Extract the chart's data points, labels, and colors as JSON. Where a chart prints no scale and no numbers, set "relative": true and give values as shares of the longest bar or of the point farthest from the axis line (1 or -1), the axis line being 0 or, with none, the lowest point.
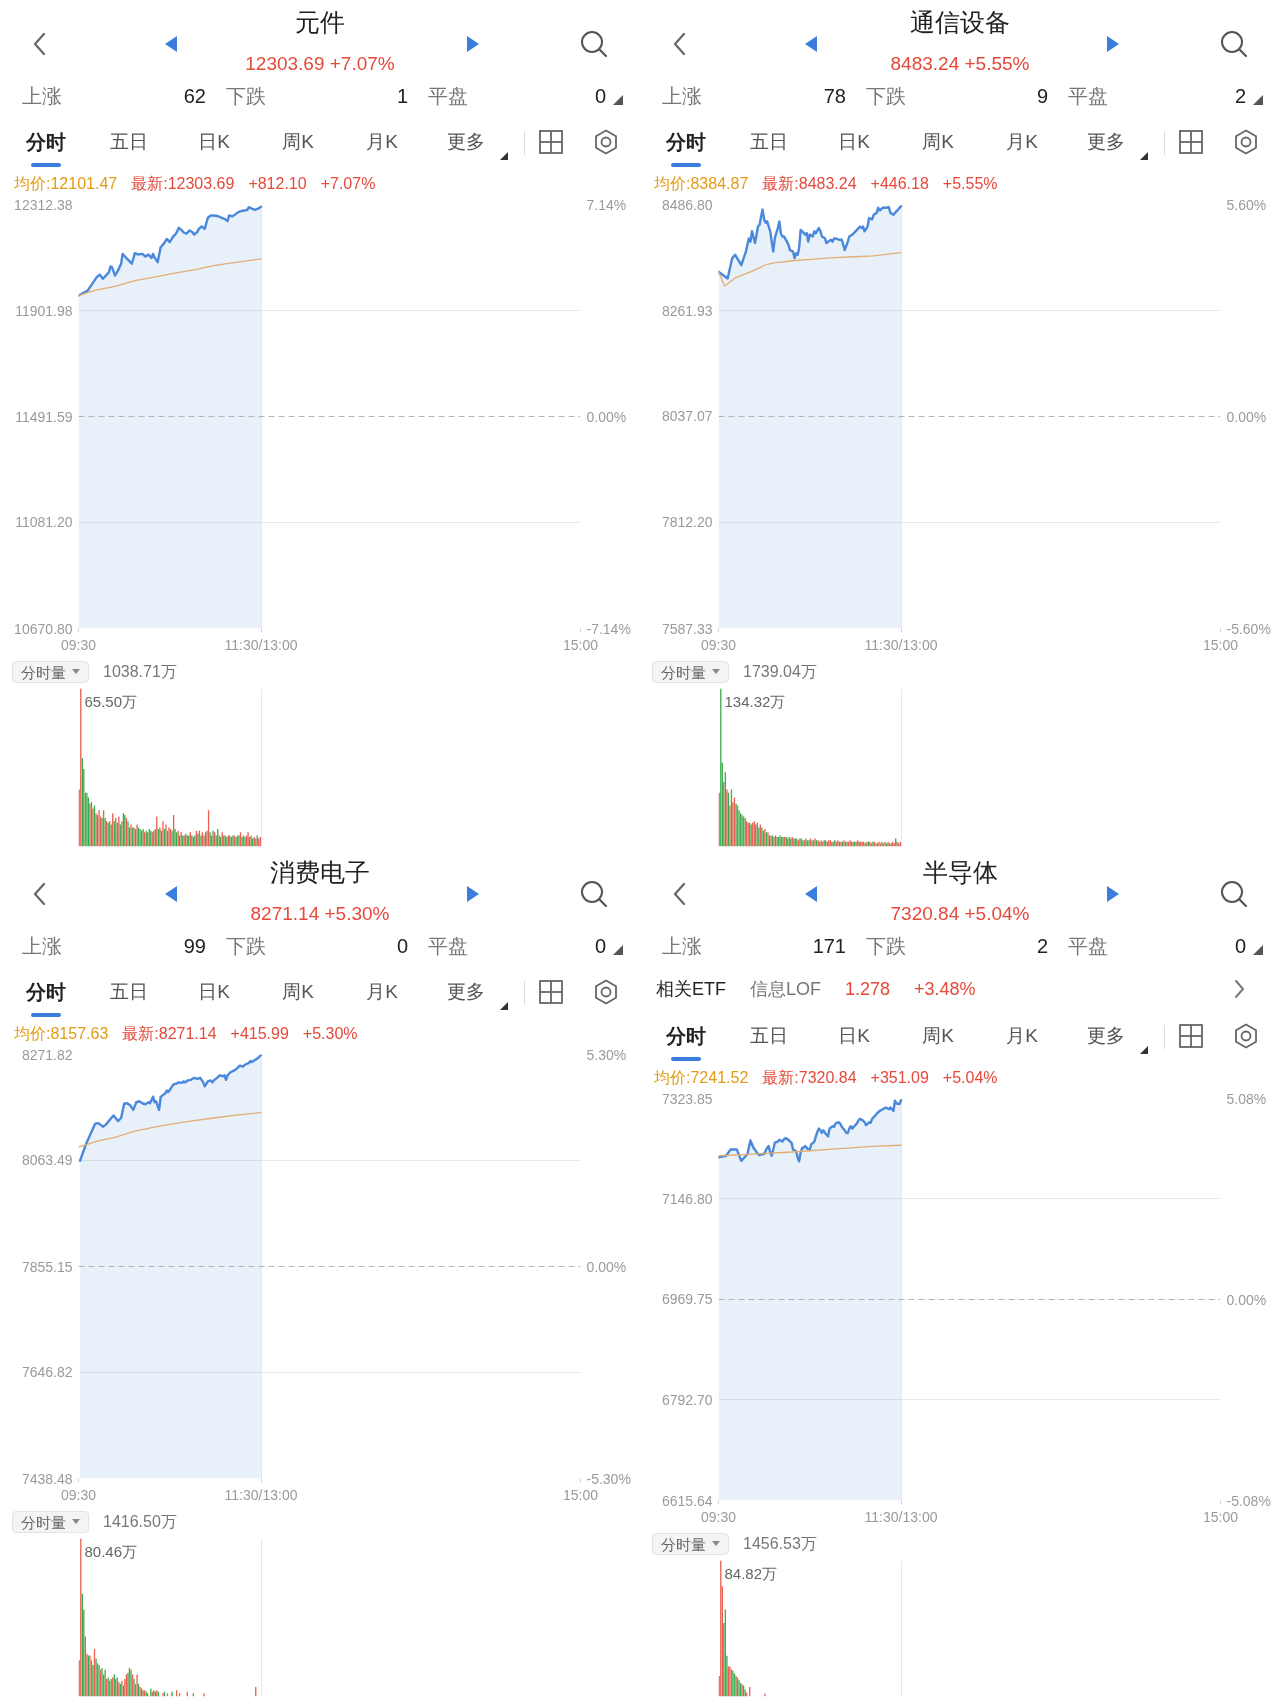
{
  "chart_data": [
    {
      "type": "line",
      "title": "元件",
      "subtitle": "12303.69 +7.07%",
      "annotations": [
        "上涨",
        "62",
        "下跌",
        "1",
        "平盘",
        "0",
        "分时",
        "五日",
        "日K",
        "周K",
        "月K",
        "更多",
        "均价:12101.47",
        "最新:12303.69",
        "+812.10",
        "+7.07%"
      ],
      "xlim": [
        9.5,
        15
      ],
      "xticks": [
        {
          "value": 9.5,
          "label": "09:30"
        },
        {
          "value": 11.5,
          "label": "11:30/13:00"
        },
        {
          "value": 15,
          "label": "15:00"
        }
      ],
      "ylim": [
        10670.8,
        12312.38
      ],
      "yticks": [
        {
          "value": 10670.8,
          "label": "10670.80"
        },
        {
          "value": 11081.2,
          "label": "11081.20"
        },
        11491.59,
        11901.98,
        12312.38
      ],
      "y2lim": [
        -7.14,
        7.14
      ],
      "y2ticks": [
        {
          "value": -7.14,
          "label": "-7.14%"
        },
        {
          "value": 0,
          "label": "0.00%"
        },
        {
          "value": 7.14,
          "label": "7.14%"
        }
      ],
      "grid": true,
      "ref_lines": [
        {
          "axis": "y",
          "value": 11491.59,
          "line_style": "dashed"
        }
      ],
      "series": [
        {
          "type": "area",
          "color": "#4a88db",
          "x": [
            9.5,
            9.6,
            9.7,
            9.733,
            9.767,
            9.8,
            9.833,
            9.85,
            9.867,
            9.9,
            9.933,
            9.967,
            9.983,
            10.017,
            10.05,
            10.083,
            10.1,
            10.117,
            10.15,
            10.2,
            10.233,
            10.267,
            10.3,
            10.317,
            10.333,
            10.367,
            10.4,
            10.433,
            10.467,
            10.5,
            10.533,
            10.567,
            10.6,
            10.633,
            10.65,
            10.683,
            10.717,
            10.75,
            10.767,
            10.8,
            10.817,
            10.85,
            10.883,
            10.917,
            10.95,
            10.983,
            11.033,
            11.067,
            11.1,
            11.133,
            11.15,
            11.183,
            11.217,
            11.25,
            11.283,
            11.317,
            11.35,
            11.367,
            11.4,
            11.433,
            11.467,
            11.5
          ],
          "values": [
            11960,
            11979,
            12031,
            12041,
            12025,
            12037,
            12050,
            12072,
            12070,
            12037,
            12057,
            12083,
            12121,
            12108,
            12096,
            12083,
            12102,
            12124,
            12119,
            12121,
            12111,
            12119,
            12105,
            12121,
            12108,
            12089,
            12147,
            12160,
            12179,
            12167,
            12186,
            12199,
            12222,
            12212,
            12205,
            12199,
            12212,
            12205,
            12196,
            12205,
            12218,
            12227,
            12218,
            12261,
            12270,
            12270,
            12267,
            12261,
            12257,
            12248,
            12270,
            12266,
            12274,
            12283,
            12287,
            12289,
            12292,
            12302,
            12296,
            12292,
            12296,
            12303.69
          ]
        },
        {
          "color": "#e3ad72",
          "x": [
            9.5,
            9.667,
            9.9,
            10.117,
            10.333,
            10.55,
            10.767,
            10.983,
            11.2,
            11.5
          ],
          "values": [
            11960,
            11979,
            11995,
            12018,
            12031,
            12047,
            12059,
            12076,
            12087,
            12101.47
          ]
        }
      ]
    },
    {
      "type": "bar",
      "relative": true,
      "annotations": [
        "分时量",
        "1038.71万",
        "65.50万"
      ],
      "xlim": [
        9.5,
        15
      ],
      "xticks": [
        9.5,
        11.5,
        15
      ],
      "tick_labels": false,
      "grid": "x",
      "series": [
        {
          "color": "#ea5f4f",
          "x": [
            9.508,
            9.525,
            9.575,
            9.625,
            9.658,
            9.692,
            9.725,
            9.742,
            9.775,
            9.808,
            9.842,
            9.875,
            9.908,
            9.942,
            9.975,
            10.025,
            10.075,
            10.108,
            10.142,
            10.192,
            10.225,
            10.258,
            10.308,
            10.342,
            10.358,
            10.392,
            10.425,
            10.458,
            10.492,
            10.508,
            10.542,
            10.592,
            10.625,
            10.658,
            10.692,
            10.725,
            10.758,
            10.792,
            10.825,
            10.858,
            10.875,
            10.908,
            10.925,
            10.958,
            10.992,
            11.042,
            11.075,
            11.108,
            11.142,
            11.175,
            11.208,
            11.242,
            11.275,
            11.308,
            11.342,
            11.358,
            11.392,
            11.425,
            11.442,
            11.475,
            11.492
          ],
          "values": [
            0.36,
            1.0,
            0.34,
            0.27,
            0.24,
            0.21,
            0.23,
            0.19,
            0.23,
            0.16,
            0.16,
            0.21,
            0.18,
            0.19,
            0.16,
            0.18,
            0.14,
            0.12,
            0.14,
            0.1,
            0.09,
            0.09,
            0.09,
            0.11,
            0.19,
            0.12,
            0.16,
            0.14,
            0.12,
            0.11,
            0.2,
            0.1,
            0.09,
            0.07,
            0.07,
            0.09,
            0.06,
            0.1,
            0.1,
            0.09,
            0.07,
            0.1,
            0.23,
            0.07,
            0.09,
            0.07,
            0.09,
            0.07,
            0.07,
            0.06,
            0.07,
            0.07,
            0.09,
            0.07,
            0.07,
            0.09,
            0.07,
            0.06,
            0.05,
            0.05,
            0.06
          ]
        },
        {
          "color": "#3aab4e",
          "x": [
            9.542,
            9.558,
            9.592,
            9.608,
            9.642,
            9.675,
            9.708,
            9.758,
            9.792,
            9.825,
            9.858,
            9.892,
            9.925,
            9.958,
            9.992,
            10.008,
            10.042,
            10.058,
            10.092,
            10.125,
            10.158,
            10.175,
            10.208,
            10.242,
            10.275,
            10.292,
            10.325,
            10.375,
            10.408,
            10.442,
            10.475,
            10.525,
            10.558,
            10.575,
            10.608,
            10.642,
            10.675,
            10.708,
            10.742,
            10.775,
            10.808,
            10.842,
            10.892,
            10.942,
            10.975,
            11.008,
            11.025,
            11.058,
            11.092,
            11.125,
            11.158,
            11.192,
            11.225,
            11.258,
            11.292,
            11.325,
            11.375,
            11.408,
            11.458
          ],
          "values": [
            0.56,
            0.49,
            0.34,
            0.31,
            0.28,
            0.26,
            0.2,
            0.18,
            0.18,
            0.15,
            0.14,
            0.16,
            0.15,
            0.14,
            0.21,
            0.2,
            0.16,
            0.12,
            0.12,
            0.11,
            0.12,
            0.11,
            0.11,
            0.1,
            0.11,
            0.1,
            0.1,
            0.11,
            0.1,
            0.11,
            0.1,
            0.1,
            0.11,
            0.09,
            0.07,
            0.07,
            0.08,
            0.07,
            0.07,
            0.07,
            0.08,
            0.07,
            0.09,
            0.09,
            0.1,
            0.07,
            0.11,
            0.06,
            0.07,
            0.06,
            0.07,
            0.07,
            0.06,
            0.07,
            0.06,
            0.06,
            0.06,
            0.05,
            0.07
          ]
        }
      ]
    },
    {
      "type": "line",
      "title": "通信设备",
      "subtitle": "8483.24 +5.55%",
      "annotations": [
        "上涨",
        "78",
        "下跌",
        "9",
        "平盘",
        "2",
        "分时",
        "五日",
        "日K",
        "周K",
        "月K",
        "更多",
        "均价:8384.87",
        "最新:8483.24",
        "+446.18",
        "+5.55%"
      ],
      "xlim": [
        9.5,
        15
      ],
      "xticks": [
        {
          "value": 9.5,
          "label": "09:30"
        },
        {
          "value": 11.5,
          "label": "11:30/13:00"
        },
        {
          "value": 15,
          "label": "15:00"
        }
      ],
      "ylim": [
        7587.33,
        8486.8
      ],
      "yticks": [
        7587.33,
        {
          "value": 7812.2,
          "label": "7812.20"
        },
        8037.07,
        8261.93,
        {
          "value": 8486.8,
          "label": "8486.80"
        }
      ],
      "y2lim": [
        -5.6,
        5.6
      ],
      "y2ticks": [
        {
          "value": -5.6,
          "label": "-5.60%"
        },
        {
          "value": 0,
          "label": "0.00%"
        },
        {
          "value": 5.6,
          "label": "5.60%"
        }
      ],
      "grid": true,
      "ref_lines": [
        {
          "axis": "y",
          "value": 8037.07,
          "line_style": "dashed"
        }
      ],
      "series": [
        {
          "type": "area",
          "color": "#4a88db",
          "x": [
            9.5,
            9.6,
            9.65,
            9.683,
            9.75,
            9.8,
            9.833,
            9.85,
            9.867,
            9.9,
            9.917,
            9.933,
            9.95,
            9.967,
            9.983,
            10.0,
            10.017,
            10.033,
            10.067,
            10.083,
            10.1,
            10.117,
            10.133,
            10.15,
            10.167,
            10.183,
            10.2,
            10.217,
            10.25,
            10.267,
            10.283,
            10.317,
            10.333,
            10.35,
            10.367,
            10.383,
            10.4,
            10.417,
            10.45,
            10.467,
            10.483,
            10.5,
            10.533,
            10.55,
            10.567,
            10.6,
            10.617,
            10.633,
            10.667,
            10.683,
            10.7,
            10.733,
            10.75,
            10.767,
            10.783,
            10.817,
            10.85,
            10.867,
            10.883,
            10.917,
            10.933,
            10.967,
            10.983,
            11.017,
            11.05,
            11.067,
            11.083,
            11.1,
            11.133,
            11.15,
            11.183,
            11.2,
            11.233,
            11.25,
            11.267,
            11.3,
            11.333,
            11.367,
            11.383,
            11.417,
            11.433,
            11.467,
            11.5
          ],
          "values": [
            8344,
            8330,
            8373,
            8380,
            8358,
            8387,
            8415,
            8408,
            8430,
            8405,
            8423,
            8440,
            8444,
            8462,
            8476,
            8455,
            8448,
            8451,
            8430,
            8408,
            8387,
            8415,
            8426,
            8437,
            8451,
            8426,
            8419,
            8419,
            8408,
            8401,
            8390,
            8387,
            8373,
            8383,
            8380,
            8394,
            8433,
            8430,
            8423,
            8426,
            8408,
            8423,
            8419,
            8430,
            8426,
            8437,
            8430,
            8419,
            8415,
            8405,
            8408,
            8412,
            8408,
            8415,
            8415,
            8412,
            8412,
            8401,
            8390,
            8408,
            8419,
            8423,
            8426,
            8433,
            8440,
            8437,
            8440,
            8430,
            8440,
            8458,
            8455,
            8465,
            8469,
            8480,
            8474,
            8480,
            8480,
            8481,
            8469,
            8465,
            8469,
            8476,
            8483.24
          ]
        },
        {
          "color": "#e3ad72",
          "x": [
            9.5,
            9.567,
            9.683,
            9.85,
            10.033,
            10.117,
            10.333,
            10.55,
            10.767,
            10.983,
            11.2,
            11.5
          ],
          "values": [
            8344,
            8314,
            8331,
            8344,
            8360,
            8363,
            8368,
            8371,
            8374,
            8376,
            8378,
            8384.87
          ]
        }
      ]
    },
    {
      "type": "bar",
      "relative": true,
      "annotations": [
        "分时量",
        "1739.04万",
        "134.32万"
      ],
      "xlim": [
        9.5,
        15
      ],
      "xticks": [
        9.5,
        11.5,
        15
      ],
      "tick_labels": false,
      "grid": "x",
      "series": [
        {
          "color": "#ea5f4f",
          "x": [
            9.508,
            9.558,
            9.592,
            9.625,
            9.658,
            9.675,
            9.708,
            9.775,
            9.808,
            9.825,
            9.875,
            9.892,
            9.925,
            9.958,
            10.008,
            10.042,
            10.075,
            10.108,
            10.142,
            10.192,
            10.225,
            10.258,
            10.308,
            10.342,
            10.375,
            10.408,
            10.442,
            10.475,
            10.508,
            10.542,
            10.558,
            10.592,
            10.625,
            10.642,
            10.675,
            10.708,
            10.725,
            10.758,
            10.792,
            10.808,
            10.842,
            10.875,
            10.892,
            10.925,
            10.942,
            10.975,
            11.008,
            11.025,
            11.058,
            11.075,
            11.108,
            11.125,
            11.158,
            11.175,
            11.208,
            11.225,
            11.258,
            11.275,
            11.308,
            11.325,
            11.358,
            11.375,
            11.408,
            11.425,
            11.458,
            11.475,
            11.492
          ],
          "values": [
            0.34,
            0.41,
            0.36,
            0.26,
            0.28,
            0.31,
            0.26,
            0.19,
            0.16,
            0.15,
            0.15,
            0.16,
            0.15,
            0.14,
            0.11,
            0.09,
            0.07,
            0.06,
            0.06,
            0.06,
            0.06,
            0.05,
            0.06,
            0.05,
            0.04,
            0.05,
            0.04,
            0.04,
            0.05,
            0.04,
            0.05,
            0.04,
            0.04,
            0.03,
            0.04,
            0.04,
            0.04,
            0.03,
            0.03,
            0.04,
            0.03,
            0.04,
            0.03,
            0.03,
            0.04,
            0.03,
            0.03,
            0.04,
            0.03,
            0.03,
            0.02,
            0.03,
            0.03,
            0.02,
            0.03,
            0.02,
            0.03,
            0.02,
            0.02,
            0.03,
            0.03,
            0.02,
            0.03,
            0.02,
            0.03,
            0.02,
            0.03
          ]
        },
        {
          "color": "#3aab4e",
          "x": [
            9.525,
            9.542,
            9.575,
            9.608,
            9.642,
            9.692,
            9.725,
            9.742,
            9.758,
            9.792,
            9.842,
            9.858,
            9.908,
            9.942,
            9.975,
            9.992,
            10.025,
            10.058,
            10.092,
            10.125,
            10.158,
            10.175,
            10.208,
            10.242,
            10.275,
            10.292,
            10.325,
            10.358,
            10.392,
            10.425,
            10.458,
            10.492,
            10.525,
            10.575,
            10.608,
            10.658,
            10.692,
            10.742,
            10.775,
            10.825,
            10.858,
            10.908,
            10.958,
            10.992,
            11.042,
            11.092,
            11.142,
            11.192,
            11.242,
            11.292,
            11.342,
            11.392,
            11.442
          ],
          "values": [
            1.0,
            0.53,
            0.47,
            0.34,
            0.36,
            0.27,
            0.23,
            0.21,
            0.2,
            0.18,
            0.15,
            0.14,
            0.14,
            0.12,
            0.12,
            0.1,
            0.09,
            0.07,
            0.07,
            0.07,
            0.06,
            0.07,
            0.06,
            0.06,
            0.06,
            0.05,
            0.05,
            0.05,
            0.05,
            0.04,
            0.05,
            0.04,
            0.04,
            0.04,
            0.03,
            0.04,
            0.03,
            0.03,
            0.04,
            0.03,
            0.03,
            0.03,
            0.03,
            0.03,
            0.03,
            0.03,
            0.03,
            0.03,
            0.02,
            0.03,
            0.02,
            0.02,
            0.05
          ]
        }
      ]
    },
    {
      "type": "line",
      "title": "消费电子",
      "subtitle": "8271.14 +5.30%",
      "annotations": [
        "上涨",
        "99",
        "下跌",
        "0",
        "平盘",
        "0",
        "分时",
        "五日",
        "日K",
        "周K",
        "月K",
        "更多",
        "均价:8157.63",
        "最新:8271.14",
        "+415.99",
        "+5.30%"
      ],
      "xlim": [
        9.5,
        15
      ],
      "xticks": [
        {
          "value": 9.5,
          "label": "09:30"
        },
        {
          "value": 11.5,
          "label": "11:30/13:00"
        },
        {
          "value": 15,
          "label": "15:00"
        }
      ],
      "ylim": [
        7438.48,
        8271.82
      ],
      "yticks": [
        7438.48,
        7646.82,
        7855.15,
        8063.49,
        8271.82
      ],
      "y2lim": [
        -5.3,
        5.3
      ],
      "y2ticks": [
        {
          "value": -5.3,
          "label": "-5.30%"
        },
        {
          "value": 0,
          "label": "0.00%"
        },
        {
          "value": 5.3,
          "label": "5.30%"
        }
      ],
      "grid": true,
      "ref_lines": [
        {
          "axis": "y",
          "value": 7855.15,
          "line_style": "dashed"
        }
      ],
      "series": [
        {
          "type": "area",
          "color": "#4a88db",
          "x": [
            9.517,
            9.583,
            9.633,
            9.683,
            9.717,
            9.767,
            9.8,
            9.85,
            9.883,
            9.933,
            9.967,
            10.0,
            10.033,
            10.067,
            10.1,
            10.133,
            10.167,
            10.2,
            10.233,
            10.267,
            10.283,
            10.317,
            10.333,
            10.35,
            10.383,
            10.4,
            10.417,
            10.45,
            10.467,
            10.483,
            10.5,
            10.533,
            10.55,
            10.567,
            10.6,
            10.633,
            10.65,
            10.667,
            10.7,
            10.733,
            10.767,
            10.8,
            10.833,
            10.867,
            10.883,
            10.917,
            10.95,
            10.967,
            10.983,
            11.017,
            11.05,
            11.083,
            11.1,
            11.117,
            11.133,
            11.167,
            11.2,
            11.233,
            11.267,
            11.3,
            11.333,
            11.367,
            11.383,
            11.4,
            11.433,
            11.467,
            11.5
          ],
          "values": [
            8063,
            8096,
            8116,
            8136,
            8137,
            8130,
            8134,
            8145,
            8152,
            8141,
            8147,
            8175,
            8176,
            8172,
            8163,
            8178,
            8180,
            8176,
            8174,
            8178,
            8176,
            8189,
            8178,
            8180,
            8163,
            8188,
            8191,
            8195,
            8201,
            8198,
            8202,
            8211,
            8214,
            8214,
            8217,
            8216,
            8219,
            8217,
            8221,
            8222,
            8226,
            8224,
            8226,
            8217,
            8209,
            8219,
            8221,
            8217,
            8221,
            8226,
            8231,
            8229,
            8231,
            8222,
            8231,
            8237,
            8240,
            8244,
            8250,
            8248,
            8253,
            8255,
            8259,
            8257,
            8261,
            8265,
            8271.14
          ]
        },
        {
          "color": "#e3ad72",
          "x": [
            9.5,
            9.717,
            9.9,
            10.117,
            10.333,
            10.55,
            10.767,
            10.983,
            11.2,
            11.5
          ],
          "values": [
            8090,
            8102,
            8109,
            8121,
            8129,
            8136,
            8142,
            8147,
            8152,
            8157.63
          ]
        }
      ]
    },
    {
      "type": "bar",
      "relative": true,
      "annotations": [
        "分时量",
        "1416.50万",
        "80.46万"
      ],
      "xlim": [
        9.5,
        15
      ],
      "xticks": [
        9.5,
        11.5,
        15
      ],
      "tick_labels": false,
      "grid": "x",
      "series": [
        {
          "color": "#ea5f4f",
          "x": [
            9.508,
            9.525,
            9.575,
            9.592,
            9.625,
            9.642,
            9.675,
            9.708,
            9.742,
            9.775,
            9.808,
            9.842,
            9.875,
            9.908,
            9.942,
            9.975,
            10.008,
            10.025,
            10.058,
            10.092,
            10.125,
            10.142,
            10.175,
            10.208,
            10.225,
            10.308,
            10.358,
            10.425,
            10.475,
            10.575,
            10.608,
            10.692,
            10.875,
            11.442
          ],
          "values": [
            0.23,
            1.0,
            0.38,
            0.27,
            0.26,
            0.23,
            0.3,
            0.21,
            0.17,
            0.14,
            0.11,
            0.1,
            0.12,
            0.11,
            0.09,
            0.1,
            0.11,
            0.14,
            0.18,
            0.14,
            0.08,
            0.14,
            0.06,
            0.04,
            0.04,
            0.03,
            0.04,
            0.02,
            0.02,
            0.04,
            0.02,
            0.03,
            0.02,
            0.06
          ]
        },
        {
          "color": "#3aab4e",
          "x": [
            9.542,
            9.558,
            9.608,
            9.658,
            9.692,
            9.725,
            9.758,
            9.792,
            9.825,
            9.858,
            9.892,
            9.925,
            9.958,
            9.992,
            10.042,
            10.075,
            10.108,
            10.158,
            10.192,
            10.242,
            10.258,
            10.292,
            10.325,
            10.342,
            10.375,
            10.442,
            10.525,
            10.758
          ],
          "values": [
            0.65,
            0.55,
            0.26,
            0.2,
            0.24,
            0.2,
            0.18,
            0.17,
            0.12,
            0.11,
            0.14,
            0.12,
            0.08,
            0.07,
            0.15,
            0.17,
            0.11,
            0.08,
            0.05,
            0.03,
            0.02,
            0.05,
            0.04,
            0.03,
            0.03,
            0.03,
            0.03,
            0.02
          ]
        }
      ]
    },
    {
      "type": "line",
      "title": "半导体",
      "subtitle": "7320.84 +5.04%",
      "annotations": [
        "上涨",
        "171",
        "下跌",
        "2",
        "平盘",
        "0",
        "相关ETF",
        "信息LOF",
        "1.278",
        "+3.48%",
        "分时",
        "五日",
        "日K",
        "周K",
        "月K",
        "更多",
        "均价:7241.52",
        "最新:7320.84",
        "+351.09",
        "+5.04%"
      ],
      "xlim": [
        9.5,
        15
      ],
      "xticks": [
        {
          "value": 9.5,
          "label": "09:30"
        },
        {
          "value": 11.5,
          "label": "11:30/13:00"
        },
        {
          "value": 15,
          "label": "15:00"
        }
      ],
      "ylim": [
        6615.64,
        7323.85
      ],
      "yticks": [
        6615.64,
        {
          "value": 6792.7,
          "label": "6792.70"
        },
        6969.75,
        {
          "value": 7146.8,
          "label": "7146.80"
        },
        7323.85
      ],
      "y2lim": [
        -5.08,
        5.08
      ],
      "y2ticks": [
        {
          "value": -5.08,
          "label": "-5.08%"
        },
        {
          "value": 0,
          "label": "0.00%"
        },
        {
          "value": 5.08,
          "label": "5.08%"
        }
      ],
      "grid": true,
      "ref_lines": [
        {
          "axis": "y",
          "value": 6969.75,
          "line_style": "dashed"
        }
      ],
      "series": [
        {
          "type": "area",
          "color": "#4a88db",
          "x": [
            9.5,
            9.583,
            9.633,
            9.7,
            9.75,
            9.817,
            9.85,
            9.883,
            9.933,
            9.95,
            9.983,
            10.0,
            10.033,
            10.05,
            10.067,
            10.083,
            10.1,
            10.117,
            10.15,
            10.167,
            10.2,
            10.217,
            10.233,
            10.267,
            10.283,
            10.3,
            10.317,
            10.35,
            10.367,
            10.383,
            10.4,
            10.417,
            10.433,
            10.45,
            10.483,
            10.5,
            10.517,
            10.55,
            10.567,
            10.583,
            10.6,
            10.617,
            10.633,
            10.65,
            10.667,
            10.7,
            10.717,
            10.75,
            10.767,
            10.783,
            10.817,
            10.833,
            10.85,
            10.883,
            10.9,
            10.917,
            10.933,
            10.95,
            10.967,
            10.983,
            11.017,
            11.033,
            11.05,
            11.083,
            11.1,
            11.117,
            11.15,
            11.167,
            11.183,
            11.217,
            11.233,
            11.267,
            11.3,
            11.333,
            11.367,
            11.383,
            11.417,
            11.433,
            11.45,
            11.483,
            11.5
          ],
          "values": [
            7220,
            7223,
            7234,
            7234,
            7214,
            7226,
            7250,
            7237,
            7226,
            7224,
            7226,
            7226,
            7237,
            7240,
            7229,
            7223,
            7234,
            7246,
            7248,
            7251,
            7248,
            7252,
            7254,
            7251,
            7248,
            7246,
            7234,
            7231,
            7220,
            7213,
            7229,
            7237,
            7237,
            7240,
            7234,
            7234,
            7243,
            7248,
            7257,
            7265,
            7271,
            7268,
            7263,
            7268,
            7263,
            7257,
            7271,
            7275,
            7274,
            7280,
            7282,
            7280,
            7274,
            7268,
            7263,
            7263,
            7271,
            7275,
            7271,
            7274,
            7280,
            7285,
            7288,
            7285,
            7282,
            7277,
            7282,
            7281,
            7288,
            7294,
            7297,
            7302,
            7305,
            7308,
            7305,
            7308,
            7302,
            7320,
            7315,
            7314,
            7320.84
          ]
        },
        {
          "color": "#e3ad72",
          "x": [
            9.5,
            9.9,
            10.35,
            10.783,
            11.233,
            11.5
          ],
          "values": [
            7223,
            7226,
            7230,
            7235,
            7240,
            7241.52
          ]
        }
      ]
    },
    {
      "type": "bar",
      "relative": true,
      "annotations": [
        "分时量",
        "1456.53万",
        "84.82万"
      ],
      "xlim": [
        9.5,
        15
      ],
      "xticks": [
        9.5,
        11.5,
        15
      ],
      "tick_labels": false,
      "grid": "x",
      "series": [
        {
          "color": "#ea5f4f",
          "x": [
            9.508,
            9.525,
            9.542,
            9.608,
            9.625,
            9.642,
            9.692,
            9.758,
            9.808,
            9.842,
            10.008
          ],
          "values": [
            0.15,
            1.0,
            0.81,
            0.22,
            0.22,
            0.2,
            0.15,
            0.09,
            0.03,
            0.07,
            0.02
          ]
        },
        {
          "color": "#3aab4e",
          "x": [
            9.558,
            9.575,
            9.592,
            9.658,
            9.675,
            9.708,
            9.725,
            9.742,
            9.775,
            9.792
          ],
          "values": [
            0.54,
            0.64,
            0.3,
            0.19,
            0.17,
            0.14,
            0.12,
            0.1,
            0.08,
            0.05
          ]
        }
      ]
    }
  ]
}
